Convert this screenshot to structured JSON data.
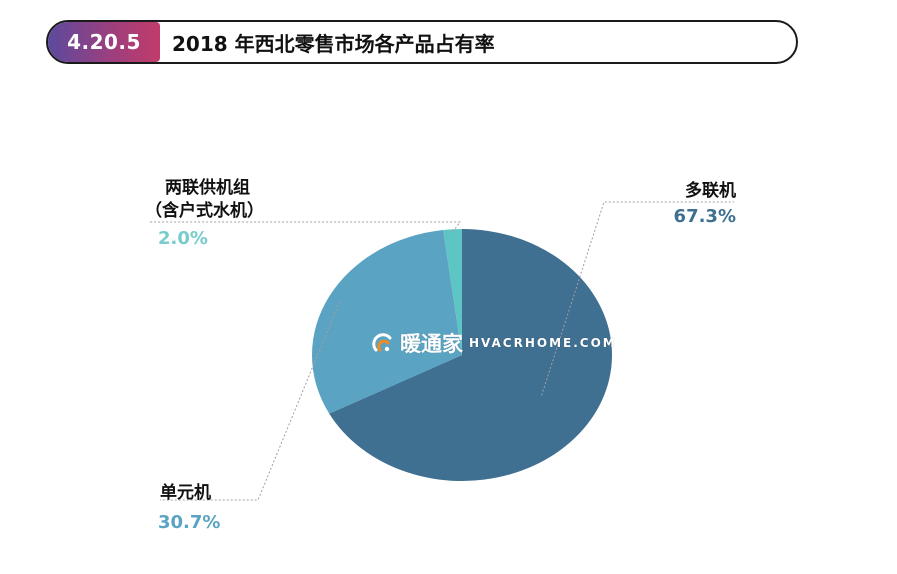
{
  "header": {
    "section_number": "4.20.5",
    "title": "2018 年西北零售市场各产品占有率"
  },
  "watermark": {
    "brand_cn": "暖通家",
    "brand_en": "HVACRHOME.COM",
    "icon": "hvac-logo-icon"
  },
  "chart_data": {
    "type": "pie",
    "title": "",
    "start": "12 o'clock",
    "direction": "clockwise",
    "slices": [
      {
        "key": "multi",
        "name": "多联机",
        "name_line2": "",
        "value": 67.3,
        "value_label": "67.3%",
        "color": "#3f6f91",
        "label_color": "#3f6f91",
        "leader_color": "#a0a0a0"
      },
      {
        "key": "unitary",
        "name": "单元机",
        "name_line2": "",
        "value": 30.7,
        "value_label": "30.7%",
        "color": "#5aa3c2",
        "label_color": "#5aa3c2",
        "leader_color": "#a0a0a0"
      },
      {
        "key": "chiller",
        "name": "两联供机组",
        "name_line2": "（含户式水机）",
        "value": 2.0,
        "value_label": "2.0%",
        "color": "#5ec5c5",
        "label_color": "#78cccc",
        "leader_color": "#a0a0a0"
      }
    ]
  }
}
